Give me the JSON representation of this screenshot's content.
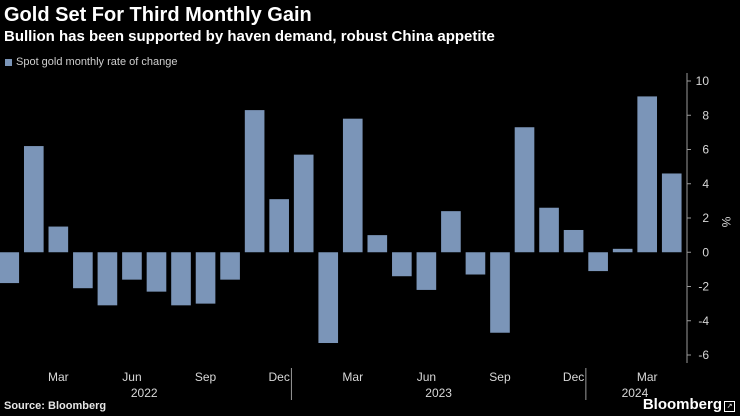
{
  "title": "Gold Set For Third Monthly Gain",
  "subtitle": "Bullion has been supported by haven demand, robust China appetite",
  "source": "Source: Bloomberg",
  "brand": "Bloomberg",
  "brand_icon": "external-link-icon",
  "colors": {
    "background": "#000000",
    "bar": "#7b95b8",
    "text": "#ffffff",
    "axis": "#9a9a9a"
  },
  "chart_data": {
    "type": "bar",
    "title": "Gold Set For Third Monthly Gain",
    "ylabel": "%",
    "ylim": [
      -6,
      10
    ],
    "yticks": [
      10,
      8,
      6,
      4,
      2,
      0,
      -2,
      -4,
      -6
    ],
    "legend": "Spot gold monthly rate of change",
    "legend_position": "top-left",
    "series": [
      {
        "name": "Spot gold monthly rate of change",
        "categories": [
          "2022-01",
          "2022-02",
          "2022-03",
          "2022-04",
          "2022-05",
          "2022-06",
          "2022-07",
          "2022-08",
          "2022-09",
          "2022-10",
          "2022-11",
          "2022-12",
          "2023-01",
          "2023-02",
          "2023-03",
          "2023-04",
          "2023-05",
          "2023-06",
          "2023-07",
          "2023-08",
          "2023-09",
          "2023-10",
          "2023-11",
          "2023-12",
          "2024-01",
          "2024-02",
          "2024-03",
          "2024-04"
        ],
        "values": [
          -1.8,
          6.2,
          1.5,
          -2.1,
          -3.1,
          -1.6,
          -2.3,
          -3.1,
          -3.0,
          -1.6,
          8.3,
          3.1,
          5.7,
          -5.3,
          7.8,
          1.0,
          -1.4,
          -2.2,
          2.4,
          -1.3,
          -4.7,
          7.3,
          2.6,
          1.3,
          -1.1,
          0.2,
          9.1,
          4.6
        ]
      }
    ],
    "month_labels": [
      {
        "label": "Mar",
        "index": 2
      },
      {
        "label": "Jun",
        "index": 5
      },
      {
        "label": "Sep",
        "index": 8
      },
      {
        "label": "Dec",
        "index": 11
      },
      {
        "label": "Mar",
        "index": 14
      },
      {
        "label": "Jun",
        "index": 17
      },
      {
        "label": "Sep",
        "index": 20
      },
      {
        "label": "Dec",
        "index": 23
      },
      {
        "label": "Mar",
        "index": 26
      }
    ],
    "year_labels": [
      {
        "label": "2022",
        "start": 0,
        "end": 11
      },
      {
        "label": "2023",
        "start": 12,
        "end": 23
      },
      {
        "label": "2024",
        "start": 24,
        "end": 27
      }
    ]
  }
}
